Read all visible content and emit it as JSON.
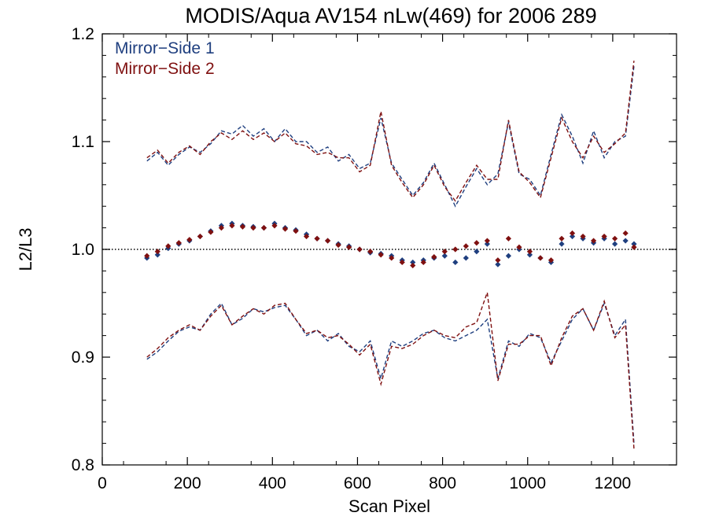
{
  "chart_data": {
    "type": "scatter",
    "title": "MODIS/Aqua AV154 nLw(469) for 2006 289",
    "xlabel": "Scan Pixel",
    "ylabel": "L2/L3",
    "xlim": [
      0,
      1350
    ],
    "ylim": [
      0.8,
      1.2
    ],
    "xticks": [
      0,
      200,
      400,
      600,
      800,
      1000,
      1200
    ],
    "xtick_labels": [
      "0",
      "200",
      "400",
      "600",
      "800",
      "1000",
      "1200"
    ],
    "yticks": [
      0.8,
      0.9,
      1.0,
      1.1,
      1.2
    ],
    "ytick_labels": [
      "0.8",
      "0.9",
      "1.0",
      "1.1",
      "1.2"
    ],
    "reference_line": 1.0,
    "legend_position": "top-left",
    "series": [
      {
        "name": "Mirror−Side 1",
        "color": "#1f3f7f",
        "x": [
          105,
          130,
          155,
          180,
          205,
          230,
          255,
          280,
          305,
          330,
          355,
          380,
          405,
          430,
          455,
          480,
          505,
          530,
          555,
          580,
          605,
          630,
          655,
          680,
          705,
          730,
          755,
          780,
          805,
          830,
          855,
          880,
          905,
          930,
          955,
          980,
          1005,
          1030,
          1055,
          1080,
          1105,
          1130,
          1155,
          1180,
          1205,
          1230,
          1250
        ],
        "median": [
          0.992,
          0.995,
          1.001,
          1.005,
          1.008,
          1.012,
          1.017,
          1.022,
          1.024,
          1.022,
          1.021,
          1.02,
          1.024,
          1.02,
          1.018,
          1.014,
          1.01,
          1.008,
          1.005,
          1.003,
          1.0,
          0.997,
          0.996,
          0.994,
          0.99,
          0.988,
          0.99,
          0.992,
          0.994,
          0.988,
          0.992,
          0.998,
          1.005,
          0.986,
          0.994,
          1.0,
          0.995,
          0.992,
          0.988,
          1.005,
          1.012,
          1.01,
          1.006,
          1.01,
          1.005,
          1.008,
          1.005
        ],
        "upper": [
          1.082,
          1.09,
          1.078,
          1.088,
          1.095,
          1.09,
          1.098,
          1.11,
          1.107,
          1.115,
          1.105,
          1.112,
          1.1,
          1.112,
          1.1,
          1.1,
          1.09,
          1.095,
          1.082,
          1.088,
          1.075,
          1.08,
          1.122,
          1.08,
          1.065,
          1.05,
          1.062,
          1.08,
          1.06,
          1.04,
          1.058,
          1.075,
          1.06,
          1.07,
          1.118,
          1.07,
          1.065,
          1.05,
          1.088,
          1.125,
          1.105,
          1.08,
          1.11,
          1.085,
          1.1,
          1.105,
          1.17
        ],
        "lower": [
          0.898,
          0.905,
          0.915,
          0.924,
          0.928,
          0.925,
          0.94,
          0.95,
          0.93,
          0.936,
          0.945,
          0.942,
          0.946,
          0.948,
          0.935,
          0.92,
          0.925,
          0.915,
          0.922,
          0.91,
          0.905,
          0.915,
          0.88,
          0.915,
          0.91,
          0.915,
          0.922,
          0.925,
          0.918,
          0.915,
          0.92,
          0.925,
          0.935,
          0.88,
          0.915,
          0.91,
          0.922,
          0.918,
          0.895,
          0.915,
          0.935,
          0.945,
          0.925,
          0.95,
          0.92,
          0.935,
          0.82
        ]
      },
      {
        "name": "Mirror−Side 2",
        "color": "#7f1010",
        "x": [
          105,
          130,
          155,
          180,
          205,
          230,
          255,
          280,
          305,
          330,
          355,
          380,
          405,
          430,
          455,
          480,
          505,
          530,
          555,
          580,
          605,
          630,
          655,
          680,
          705,
          730,
          755,
          780,
          805,
          830,
          855,
          880,
          905,
          930,
          955,
          980,
          1005,
          1030,
          1055,
          1080,
          1105,
          1130,
          1155,
          1180,
          1205,
          1230,
          1250
        ],
        "median": [
          0.994,
          0.998,
          1.003,
          1.006,
          1.009,
          1.012,
          1.016,
          1.02,
          1.022,
          1.021,
          1.02,
          1.02,
          1.022,
          1.019,
          1.017,
          1.012,
          1.01,
          1.008,
          1.004,
          1.002,
          1.0,
          0.998,
          0.995,
          0.992,
          0.988,
          0.985,
          0.988,
          0.993,
          0.998,
          1.0,
          1.003,
          1.006,
          1.008,
          0.99,
          1.01,
          1.002,
          0.998,
          0.992,
          0.99,
          1.01,
          1.015,
          1.012,
          1.008,
          1.012,
          1.01,
          1.015,
          1.002
        ],
        "upper": [
          1.085,
          1.092,
          1.08,
          1.09,
          1.096,
          1.088,
          1.1,
          1.108,
          1.102,
          1.11,
          1.102,
          1.108,
          1.1,
          1.108,
          1.098,
          1.096,
          1.088,
          1.09,
          1.085,
          1.085,
          1.072,
          1.078,
          1.128,
          1.078,
          1.062,
          1.048,
          1.06,
          1.078,
          1.058,
          1.045,
          1.062,
          1.078,
          1.065,
          1.065,
          1.12,
          1.072,
          1.062,
          1.048,
          1.085,
          1.122,
          1.1,
          1.085,
          1.105,
          1.09,
          1.098,
          1.108,
          1.175
        ],
        "lower": [
          0.9,
          0.908,
          0.918,
          0.925,
          0.93,
          0.925,
          0.938,
          0.948,
          0.93,
          0.938,
          0.945,
          0.94,
          0.948,
          0.95,
          0.935,
          0.922,
          0.925,
          0.918,
          0.92,
          0.912,
          0.902,
          0.912,
          0.875,
          0.91,
          0.908,
          0.912,
          0.92,
          0.925,
          0.92,
          0.918,
          0.928,
          0.932,
          0.96,
          0.878,
          0.912,
          0.912,
          0.92,
          0.92,
          0.892,
          0.918,
          0.938,
          0.945,
          0.925,
          0.952,
          0.918,
          0.93,
          0.815
        ]
      }
    ]
  }
}
